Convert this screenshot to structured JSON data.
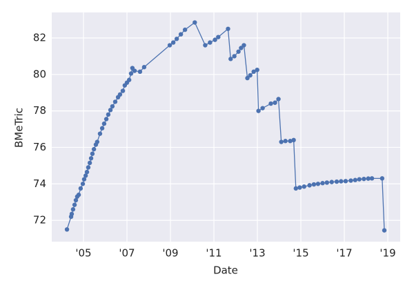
{
  "chart_data": {
    "type": "line",
    "xlabel": "Date",
    "ylabel": "BMeTric",
    "color": "#4c72b0",
    "grid": true,
    "xlim": [
      2003.54,
      2019.57
    ],
    "ylim": [
      70.83,
      83.4
    ],
    "xticks": [
      {
        "value": 2005,
        "label": "'05"
      },
      {
        "value": 2007,
        "label": "'07"
      },
      {
        "value": 2009,
        "label": "'09"
      },
      {
        "value": 2011,
        "label": "'11"
      },
      {
        "value": 2013,
        "label": "'13"
      },
      {
        "value": 2015,
        "label": "'15"
      },
      {
        "value": 2017,
        "label": "'17"
      },
      {
        "value": 2019,
        "label": "'19"
      }
    ],
    "yticks": [
      72,
      74,
      76,
      78,
      80,
      82
    ],
    "x": [
      2004.24,
      2004.43,
      2004.46,
      2004.52,
      2004.59,
      2004.65,
      2004.71,
      2004.78,
      2004.87,
      2004.97,
      2005.03,
      2005.1,
      2005.16,
      2005.22,
      2005.29,
      2005.35,
      2005.41,
      2005.48,
      2005.57,
      2005.63,
      2005.76,
      2005.86,
      2005.95,
      2006.05,
      2006.14,
      2006.24,
      2006.33,
      2006.46,
      2006.59,
      2006.68,
      2006.81,
      2006.9,
      2007.0,
      2007.1,
      2007.19,
      2007.25,
      2007.35,
      2007.6,
      2007.79,
      2008.97,
      2009.13,
      2009.29,
      2009.48,
      2009.67,
      2010.12,
      2010.6,
      2010.82,
      2011.05,
      2011.2,
      2011.65,
      2011.77,
      2011.94,
      2012.13,
      2012.25,
      2012.38,
      2012.54,
      2012.67,
      2012.83,
      2012.99,
      2013.05,
      2013.24,
      2013.62,
      2013.81,
      2013.97,
      2014.1,
      2014.29,
      2014.51,
      2014.67,
      2014.77,
      2014.95,
      2015.15,
      2015.4,
      2015.6,
      2015.79,
      2016.0,
      2016.2,
      2016.42,
      2016.65,
      2016.85,
      2017.06,
      2017.3,
      2017.5,
      2017.69,
      2017.9,
      2018.1,
      2018.27,
      2018.74,
      2018.84
    ],
    "values": [
      71.5,
      72.2,
      72.35,
      72.6,
      72.85,
      73.1,
      73.3,
      73.4,
      73.75,
      74.0,
      74.25,
      74.45,
      74.65,
      74.9,
      75.15,
      75.4,
      75.65,
      75.9,
      76.15,
      76.3,
      76.75,
      77.05,
      77.3,
      77.55,
      77.8,
      78.05,
      78.25,
      78.5,
      78.75,
      78.9,
      79.1,
      79.4,
      79.55,
      79.7,
      80.05,
      80.35,
      80.2,
      80.15,
      80.4,
      81.6,
      81.75,
      81.95,
      82.2,
      82.45,
      82.85,
      81.6,
      81.75,
      81.9,
      82.05,
      82.5,
      80.85,
      81.0,
      81.25,
      81.45,
      81.6,
      79.8,
      79.95,
      80.15,
      80.25,
      78.0,
      78.15,
      78.4,
      78.45,
      78.65,
      76.3,
      76.35,
      76.35,
      76.4,
      73.75,
      73.8,
      73.85,
      73.92,
      73.97,
      74.0,
      74.04,
      74.07,
      74.1,
      74.12,
      74.14,
      74.15,
      74.18,
      74.21,
      74.25,
      74.27,
      74.29,
      74.3,
      74.3,
      71.45
    ]
  }
}
